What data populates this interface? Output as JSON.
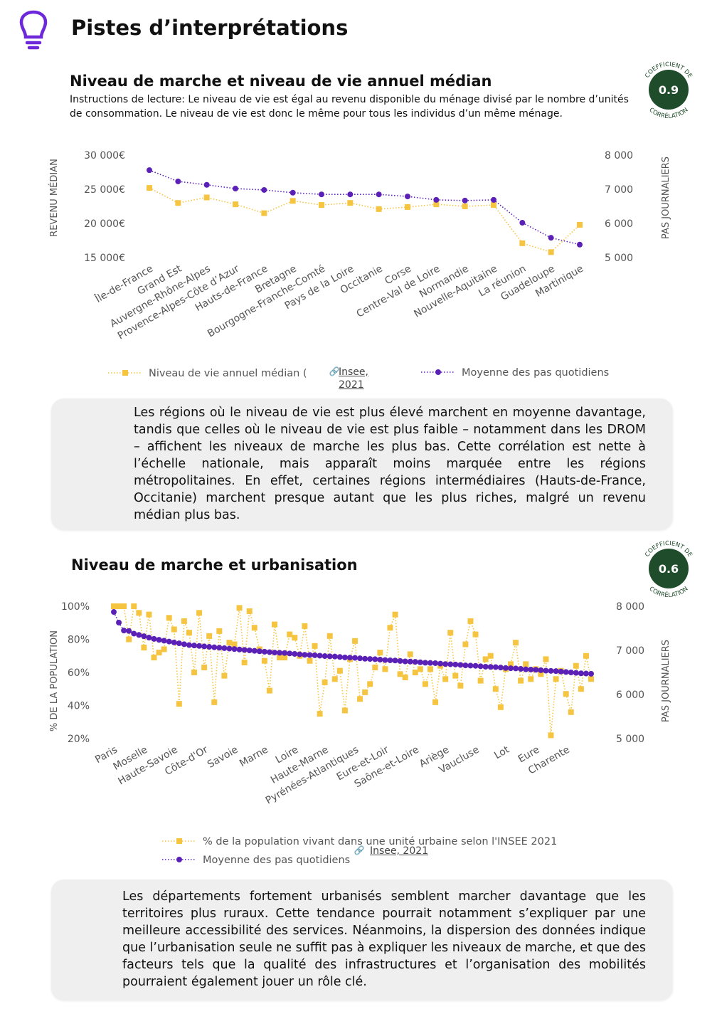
{
  "header": {
    "title": "Pistes d’interprétations"
  },
  "chart_data": [
    {
      "type": "line",
      "title": "Niveau de marche et niveau de vie annuel médian",
      "note": "Instructions de lecture: Le niveau de vie est égal au revenu disponible du ménage divisé par le nombre d’unités de consommation. Le niveau de vie est donc le même pour tous les individus d’un même ménage.",
      "coefficient": 0.9,
      "badge_top": "COEFFICIENT DE",
      "badge_bottom": "CORRÉLATION",
      "ylabel": "REVENU MÉDIAN",
      "y2label": "PAS JOURNALIERS",
      "source": "Insee, 2021",
      "categories": [
        "Île-de-France",
        "Grand Est",
        "Auvergne-Rhône-Alpes",
        "Provence-Alpes-Côte d’Azur",
        "Hauts-de-France",
        "Bretagne",
        "Bourgogne-Franche-Comté",
        "Pays de la Loire",
        "Occitanie",
        "Corse",
        "Centre-Val de Loire",
        "Normandie",
        "Nouvelle-Aquitaine",
        "La réunion",
        "Guadeloupe",
        "Martinique"
      ],
      "series": [
        {
          "name": "Niveau de vie annuel médian (",
          "color": "#f5c542",
          "marker": "square",
          "axis": "y",
          "values": [
            25200,
            23000,
            23800,
            22800,
            21500,
            23300,
            22700,
            23000,
            22100,
            22400,
            22800,
            22500,
            22700,
            17100,
            15800,
            19800
          ]
        },
        {
          "name": "Moyenne des pas quotidiens",
          "color": "#5b21b6",
          "marker": "circle",
          "axis": "y2",
          "values": [
            7560,
            7230,
            7130,
            7020,
            6980,
            6900,
            6850,
            6850,
            6850,
            6790,
            6690,
            6670,
            6690,
            6020,
            5580,
            5380
          ]
        }
      ],
      "ylim": [
        15000,
        30000
      ],
      "yticks": [
        {
          "value": 15000,
          "label": "15 000€"
        },
        {
          "value": 20000,
          "label": "20 000€"
        },
        {
          "value": 25000,
          "label": "25 000€"
        },
        {
          "value": 30000,
          "label": "30 000€"
        }
      ],
      "y2lim": [
        5000,
        8000
      ],
      "y2ticks": [
        {
          "value": 5000,
          "label": "5 000"
        },
        {
          "value": 6000,
          "label": "6 000"
        },
        {
          "value": 7000,
          "label": "7 000"
        },
        {
          "value": 8000,
          "label": "8 000"
        }
      ],
      "grid": false
    },
    {
      "type": "line",
      "title": "Niveau de marche et urbanisation",
      "coefficient": 0.6,
      "badge_top": "COEFFICIENT DE",
      "badge_bottom": "CORRÉLATION",
      "ylabel": "% DE LA POPULATION",
      "y2label": "PAS JOURNALIERS",
      "source": "Insee, 2021",
      "categories": [
        "Paris",
        null,
        null,
        null,
        null,
        null,
        "Moselle",
        null,
        null,
        null,
        null,
        null,
        "Haute-Savoie",
        null,
        null,
        null,
        null,
        null,
        "Côte-d'Or",
        null,
        null,
        null,
        null,
        null,
        "Savoie",
        null,
        null,
        null,
        null,
        null,
        "Marne",
        null,
        null,
        null,
        null,
        null,
        "Loire",
        null,
        null,
        null,
        null,
        null,
        "Haute-Marne",
        null,
        null,
        null,
        null,
        null,
        "Pyrénées-Atlantiques",
        null,
        null,
        null,
        null,
        null,
        "Eure-et-Loir",
        null,
        null,
        null,
        null,
        null,
        "Saône-et-Loire",
        null,
        null,
        null,
        null,
        null,
        "Ariège",
        null,
        null,
        null,
        null,
        null,
        "Vaucluse",
        null,
        null,
        null,
        null,
        null,
        "Lot",
        null,
        null,
        null,
        null,
        null,
        "Eure",
        null,
        null,
        null,
        null,
        null,
        "Charente",
        null,
        null,
        null,
        null,
        null
      ],
      "series": [
        {
          "name": "% de la population vivant dans une unité urbaine selon l'INSEE 2021",
          "color": "#f5c542",
          "marker": "square",
          "axis": "y",
          "values": [
            100,
            100,
            100,
            80,
            100,
            96,
            75,
            95,
            69,
            72,
            74,
            93,
            86,
            41,
            91,
            84,
            60,
            96,
            63,
            82,
            42,
            85,
            58,
            78,
            77,
            99,
            66,
            97,
            87,
            74,
            67,
            49,
            89,
            69,
            69,
            83,
            81,
            70,
            88,
            67,
            76,
            35,
            54,
            82,
            56,
            61,
            37,
            68,
            79,
            44,
            48,
            53,
            63,
            72,
            62,
            87,
            95,
            59,
            57,
            71,
            60,
            62,
            53,
            62,
            42,
            64,
            56,
            84,
            58,
            52,
            77,
            91,
            83,
            55,
            68,
            70,
            50,
            39,
            62,
            65,
            78,
            55,
            65,
            56,
            62,
            59,
            68,
            22,
            56,
            61,
            47,
            36,
            64,
            50,
            70,
            56
          ]
        },
        {
          "name": "Moyenne des pas quotidiens",
          "color": "#5b21b6",
          "marker": "circle",
          "axis": "y2",
          "values": [
            7870,
            7630,
            7450,
            7440,
            7380,
            7350,
            7320,
            7290,
            7260,
            7240,
            7220,
            7200,
            7180,
            7160,
            7140,
            7120,
            7110,
            7100,
            7090,
            7080,
            7070,
            7060,
            7050,
            7040,
            7030,
            7020,
            7010,
            7000,
            6990,
            6980,
            6970,
            6960,
            6950,
            6945,
            6940,
            6930,
            6920,
            6910,
            6900,
            6895,
            6890,
            6880,
            6870,
            6865,
            6860,
            6850,
            6840,
            6835,
            6830,
            6820,
            6810,
            6805,
            6800,
            6790,
            6780,
            6775,
            6770,
            6760,
            6750,
            6745,
            6740,
            6730,
            6720,
            6715,
            6710,
            6700,
            6690,
            6685,
            6680,
            6670,
            6660,
            6655,
            6650,
            6640,
            6630,
            6625,
            6620,
            6610,
            6600,
            6595,
            6590,
            6580,
            6570,
            6565,
            6560,
            6550,
            6540,
            6535,
            6530,
            6520,
            6510,
            6500,
            6490,
            6480,
            6475,
            6470
          ]
        }
      ],
      "ylim": [
        20,
        100
      ],
      "yticks": [
        {
          "value": 20,
          "label": "20%"
        },
        {
          "value": 40,
          "label": "40%"
        },
        {
          "value": 60,
          "label": "60%"
        },
        {
          "value": 80,
          "label": "80%"
        },
        {
          "value": 100,
          "label": "100%"
        }
      ],
      "y2lim": [
        5000,
        8000
      ],
      "y2ticks": [
        {
          "value": 5000,
          "label": "5 000"
        },
        {
          "value": 6000,
          "label": "6 000"
        },
        {
          "value": 7000,
          "label": "7 000"
        },
        {
          "value": 8000,
          "label": "8 000"
        }
      ],
      "grid": false
    }
  ],
  "commentary": [
    "Les régions où le niveau de vie est plus élevé marchent en moyenne davantage, tandis que celles où le niveau de vie est plus faible – notamment dans les DROM – affichent les niveaux de marche les plus bas. Cette corrélation est nette à l’échelle nationale, mais apparaît moins marquée entre les régions métropolitaines. En effet, certaines régions intermédiaires (Hauts-de-France, Occitanie) marchent presque autant que les plus riches, malgré un revenu médian plus bas.",
    "Les départements fortement urbanisés semblent marcher davantage que les territoires plus ruraux. Cette tendance pourrait notamment s’expliquer par une meilleure accessibilité des services. Néanmoins, la dispersion des données indique que l’urbanisation seule ne suffit pas à expliquer les niveaux de marche, et que des facteurs tels que la qualité des infrastructures et l’organisation des mobilités pourraient également jouer un rôle clé."
  ]
}
